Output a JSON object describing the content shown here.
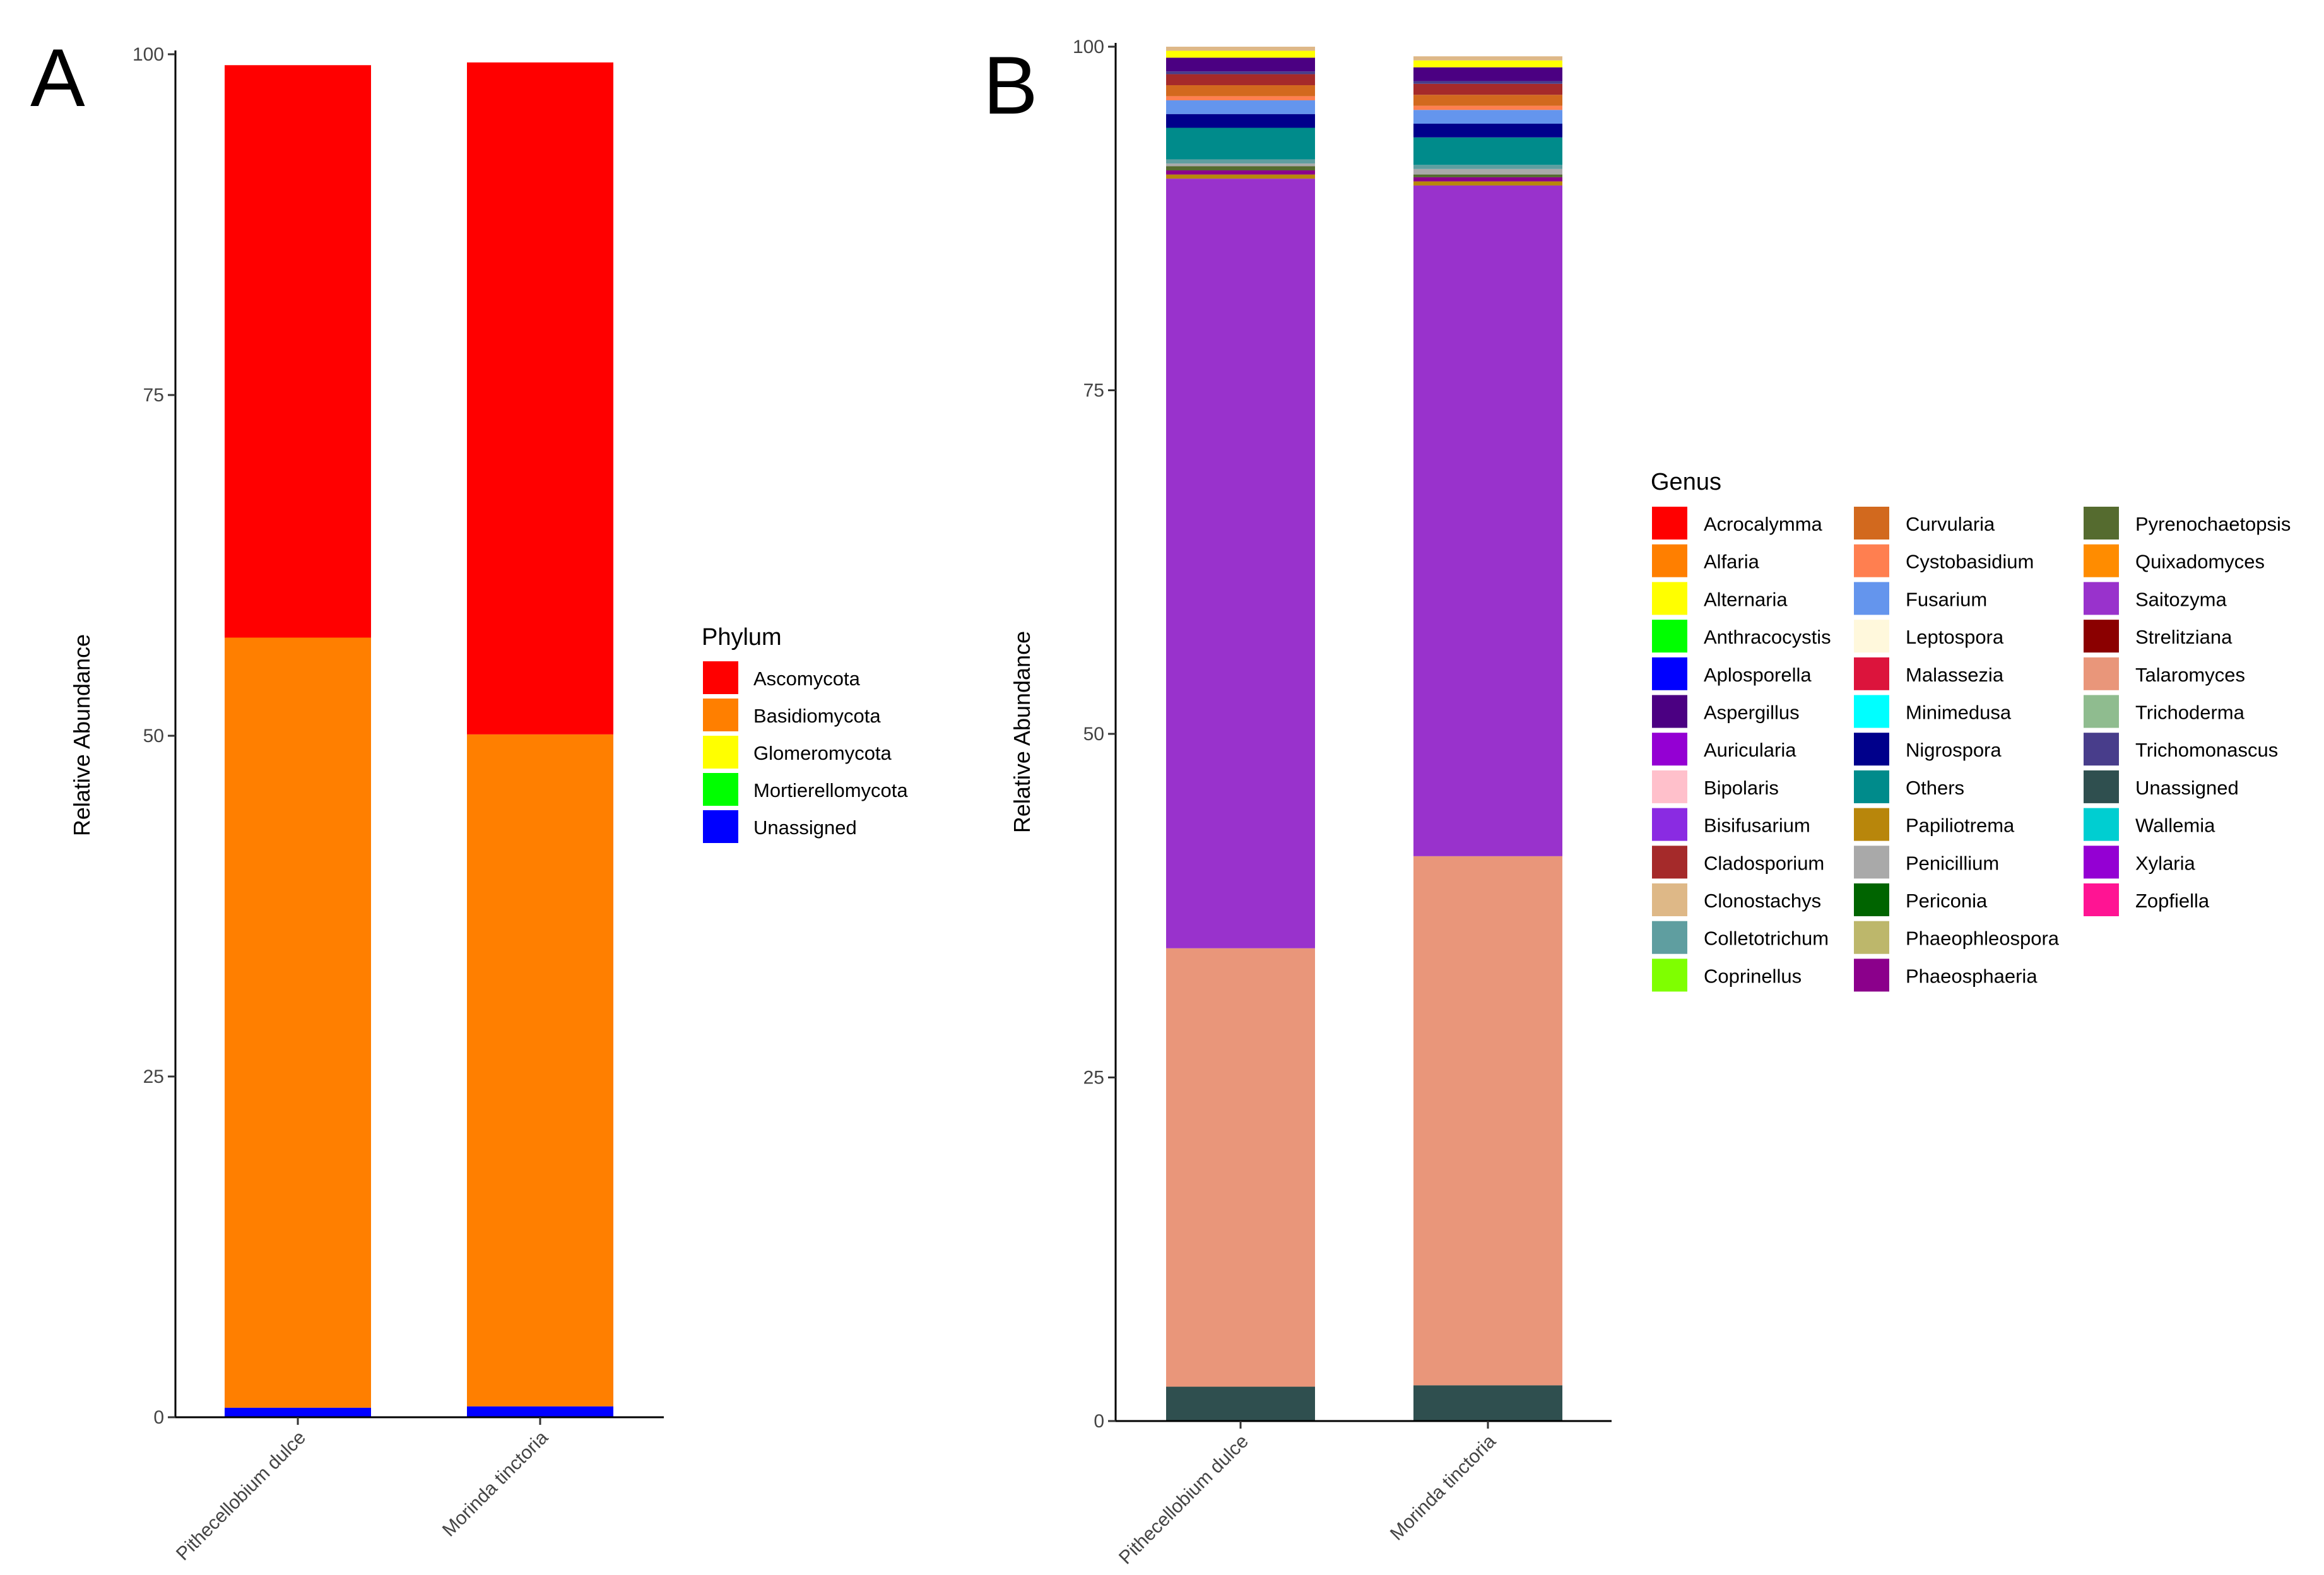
{
  "chart_data": [
    {
      "type": "bar",
      "stacked": true,
      "panel": "A",
      "ylabel": "Relative Abundance",
      "ylim": [
        0,
        100
      ],
      "yticks": [
        "0",
        "25",
        "50",
        "75",
        "100"
      ],
      "categories": [
        "Pithecellobium dulce",
        "Morinda tinctoria"
      ],
      "legend_title": "Phylum",
      "series": [
        {
          "name": "Unassigned",
          "color": "#0000FF",
          "values": [
            0.7,
            0.8
          ]
        },
        {
          "name": "Mortierellomycota",
          "color": "#00FF00",
          "values": [
            0.0,
            0.0
          ]
        },
        {
          "name": "Glomeromycota",
          "color": "#FFFF00",
          "values": [
            0.0,
            0.0
          ]
        },
        {
          "name": "Basidiomycota",
          "color": "#FF7F00",
          "values": [
            56.5,
            49.3
          ]
        },
        {
          "name": "Ascomycota",
          "color": "#FF0000",
          "values": [
            42.0,
            49.3
          ]
        }
      ],
      "legend_order": [
        "Ascomycota",
        "Basidiomycota",
        "Glomeromycota",
        "Mortierellomycota",
        "Unassigned"
      ]
    },
    {
      "type": "bar",
      "stacked": true,
      "panel": "B",
      "ylabel": "Relative Abundance",
      "ylim": [
        0,
        100
      ],
      "yticks": [
        "0",
        "25",
        "50",
        "75",
        "100"
      ],
      "categories": [
        "Pithecellobium dulce",
        "Morinda tinctoria"
      ],
      "legend_title": "Genus",
      "series": [
        {
          "name": "Unassigned",
          "color": "#2F4F4F",
          "values": [
            2.5,
            2.6
          ]
        },
        {
          "name": "Talaromyces",
          "color": "#E9967A",
          "values": [
            31.9,
            38.5
          ]
        },
        {
          "name": "Saitozyma",
          "color": "#9932CC",
          "values": [
            56.0,
            48.8
          ]
        },
        {
          "name": "Papiliotrema",
          "color": "#B8860B",
          "values": [
            0.3,
            0.3
          ]
        },
        {
          "name": "Phaeosphaeria",
          "color": "#8B008B",
          "values": [
            0.3,
            0.3
          ]
        },
        {
          "name": "Pyrenochaetopsis",
          "color": "#556B2F",
          "values": [
            0.3,
            0.2
          ]
        },
        {
          "name": "Penicillium",
          "color": "#A9A9A9",
          "values": [
            0.2,
            0.4
          ]
        },
        {
          "name": "Colletotrichum",
          "color": "#5F9EA0",
          "values": [
            0.3,
            0.3
          ]
        },
        {
          "name": "Others",
          "color": "#008B8B",
          "values": [
            2.3,
            2.0
          ]
        },
        {
          "name": "Nigrospora",
          "color": "#00008B",
          "values": [
            1.0,
            1.0
          ]
        },
        {
          "name": "Fusarium",
          "color": "#6495ED",
          "values": [
            1.0,
            1.0
          ]
        },
        {
          "name": "Cystobasidium",
          "color": "#FF7F50",
          "values": [
            0.3,
            0.3
          ]
        },
        {
          "name": "Curvularia",
          "color": "#D2691E",
          "values": [
            0.8,
            0.8
          ]
        },
        {
          "name": "Cladosporium",
          "color": "#A52A2A",
          "values": [
            0.8,
            0.8
          ]
        },
        {
          "name": "Trichomonascus",
          "color": "#483D8B",
          "values": [
            0.2,
            0.2
          ]
        },
        {
          "name": "Aspergillus",
          "color": "#4B0082",
          "values": [
            1.0,
            1.0
          ]
        },
        {
          "name": "Alternaria",
          "color": "#FFFF00",
          "values": [
            0.5,
            0.5
          ]
        },
        {
          "name": "Clonostachys",
          "color": "#DEB887",
          "values": [
            0.3,
            0.3
          ]
        }
      ],
      "legend_columns": [
        [
          {
            "name": "Acrocalymma",
            "color": "#FF0000"
          },
          {
            "name": "Alfaria",
            "color": "#FF7F00"
          },
          {
            "name": "Alternaria",
            "color": "#FFFF00"
          },
          {
            "name": "Anthracocystis",
            "color": "#00FF00"
          },
          {
            "name": "Aplosporella",
            "color": "#0000FF"
          },
          {
            "name": "Aspergillus",
            "color": "#4B0082"
          },
          {
            "name": "Auricularia",
            "color": "#9400D3"
          },
          {
            "name": "Bipolaris",
            "color": "#FFC0CB"
          },
          {
            "name": "Bisifusarium",
            "color": "#8A2BE2"
          },
          {
            "name": "Cladosporium",
            "color": "#A52A2A"
          },
          {
            "name": "Clonostachys",
            "color": "#DEB887"
          },
          {
            "name": "Colletotrichum",
            "color": "#5F9EA0"
          },
          {
            "name": "Coprinellus",
            "color": "#7FFF00"
          }
        ],
        [
          {
            "name": "Curvularia",
            "color": "#D2691E"
          },
          {
            "name": "Cystobasidium",
            "color": "#FF7F50"
          },
          {
            "name": "Fusarium",
            "color": "#6495ED"
          },
          {
            "name": "Leptospora",
            "color": "#FFF8DC"
          },
          {
            "name": "Malassezia",
            "color": "#DC143C"
          },
          {
            "name": "Minimedusa",
            "color": "#00FFFF"
          },
          {
            "name": "Nigrospora",
            "color": "#00008B"
          },
          {
            "name": "Others",
            "color": "#008B8B"
          },
          {
            "name": "Papiliotrema",
            "color": "#B8860B"
          },
          {
            "name": "Penicillium",
            "color": "#A9A9A9"
          },
          {
            "name": "Periconia",
            "color": "#006400"
          },
          {
            "name": "Phaeophleospora",
            "color": "#BDB76B"
          },
          {
            "name": "Phaeosphaeria",
            "color": "#8B008B"
          }
        ],
        [
          {
            "name": "Pyrenochaetopsis",
            "color": "#556B2F"
          },
          {
            "name": "Quixadomyces",
            "color": "#FF8C00"
          },
          {
            "name": "Saitozyma",
            "color": "#9932CC"
          },
          {
            "name": "Strelitziana",
            "color": "#8B0000"
          },
          {
            "name": "Talaromyces",
            "color": "#E9967A"
          },
          {
            "name": "Trichoderma",
            "color": "#8FBC8F"
          },
          {
            "name": "Trichomonascus",
            "color": "#483D8B"
          },
          {
            "name": "Unassigned",
            "color": "#2F4F4F"
          },
          {
            "name": "Wallemia",
            "color": "#00CED1"
          },
          {
            "name": "Xylaria",
            "color": "#9400D3"
          },
          {
            "name": "Zopfiella",
            "color": "#FF1493"
          }
        ]
      ]
    }
  ]
}
